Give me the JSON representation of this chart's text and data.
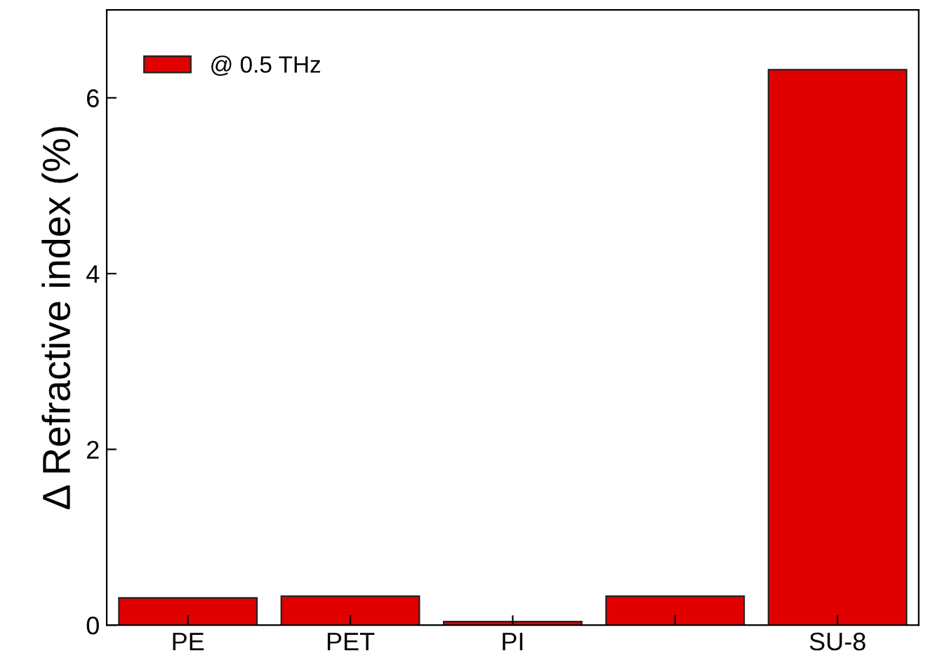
{
  "chart_data": {
    "type": "bar",
    "ylabel": "Δ Refractive index (%)",
    "categories": [
      "PE",
      "PET",
      "PI",
      null,
      "SU-8"
    ],
    "series": [
      {
        "name": "@ 0.5 THz",
        "color": "#e00000",
        "values": [
          0.31,
          0.33,
          0.04,
          0.33,
          6.32
        ]
      }
    ],
    "ylim": [
      0,
      7
    ],
    "yticks": [
      0,
      2,
      4,
      6
    ],
    "grid": false,
    "legend": "top left"
  }
}
